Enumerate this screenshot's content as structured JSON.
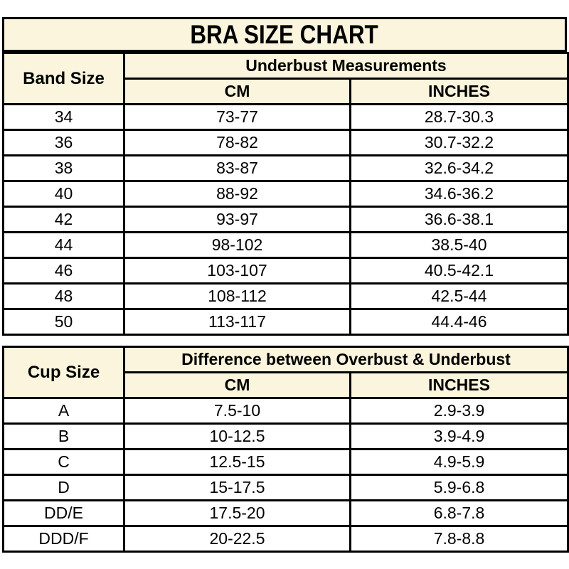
{
  "title": "BRA SIZE CHART",
  "colors": {
    "header_bg": "#FAF5DC",
    "row_bg": "#FFFFFF",
    "border": "#000000",
    "text": "#000000"
  },
  "chart_data": [
    {
      "type": "table",
      "title": "BRA SIZE CHART",
      "corner_header": "Band Size",
      "group_header": "Underbust Measurements",
      "col_headers": [
        "CM",
        "INCHES"
      ],
      "rows": [
        [
          "34",
          "73-77",
          "28.7-30.3"
        ],
        [
          "36",
          "78-82",
          "30.7-32.2"
        ],
        [
          "38",
          "83-87",
          "32.6-34.2"
        ],
        [
          "40",
          "88-92",
          "34.6-36.2"
        ],
        [
          "42",
          "93-97",
          "36.6-38.1"
        ],
        [
          "44",
          "98-102",
          "38.5-40"
        ],
        [
          "46",
          "103-107",
          "40.5-42.1"
        ],
        [
          "48",
          "108-112",
          "42.5-44"
        ],
        [
          "50",
          "113-117",
          "44.4-46"
        ]
      ]
    },
    {
      "type": "table",
      "corner_header": "Cup Size",
      "group_header": "Difference between Overbust & Underbust",
      "col_headers": [
        "CM",
        "INCHES"
      ],
      "rows": [
        [
          "A",
          "7.5-10",
          "2.9-3.9"
        ],
        [
          "B",
          "10-12.5",
          "3.9-4.9"
        ],
        [
          "C",
          "12.5-15",
          "4.9-5.9"
        ],
        [
          "D",
          "15-17.5",
          "5.9-6.8"
        ],
        [
          "DD/E",
          "17.5-20",
          "6.8-7.8"
        ],
        [
          "DDD/F",
          "20-22.5",
          "7.8-8.8"
        ]
      ]
    }
  ]
}
